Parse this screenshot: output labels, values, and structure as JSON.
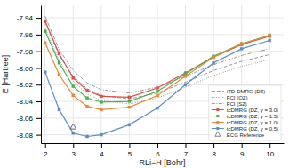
{
  "chart_data": {
    "type": "line",
    "xlabel": "RLi−H [Bohr]",
    "ylabel": "E [Hartree]",
    "x": [
      2.0,
      2.5,
      3.0,
      3.5,
      4.0,
      5.0,
      6.0,
      7.0,
      8.0,
      9.0,
      10.0
    ],
    "series": [
      {
        "name": "iTD-DMRG (DZ)",
        "color": "#999999",
        "line_style": "dashed",
        "values": [
          -7.945,
          -7.985,
          -8.01,
          -8.025,
          -8.033,
          -8.037,
          -8.03,
          -8.017,
          -8.003,
          -7.992,
          -7.984
        ]
      },
      {
        "name": "FCI (QZ)",
        "color": "#999999",
        "line_style": "dotted",
        "values": [
          -7.952,
          -7.991,
          -8.016,
          -8.031,
          -8.039,
          -8.043,
          -8.036,
          -8.023,
          -8.009,
          -7.998,
          -7.99
        ]
      },
      {
        "name": "FCI (SZ)",
        "color": "#999999",
        "line_style": "dashdot",
        "values": [
          -7.938,
          -7.978,
          -8.003,
          -8.018,
          -8.026,
          -8.03,
          -8.023,
          -8.01,
          -7.996,
          -7.985,
          -7.977
        ]
      },
      {
        "name": "tcDMRG (DZ, γ = 3.0)",
        "color": "#d94f4f",
        "line_style": "solid",
        "marker": "square",
        "values": [
          -7.944,
          -7.983,
          -8.012,
          -8.027,
          -8.034,
          -8.035,
          -8.024,
          -8.006,
          -7.987,
          -7.972,
          -7.962
        ]
      },
      {
        "name": "tcDMRG (DZ, γ = 1.5)",
        "color": "#4caf50",
        "line_style": "solid",
        "marker": "square",
        "values": [
          -7.956,
          -7.994,
          -8.022,
          -8.036,
          -8.041,
          -8.04,
          -8.028,
          -8.007,
          -7.986,
          -7.971,
          -7.961
        ]
      },
      {
        "name": "tcDMRG (DZ, γ = 1.0)",
        "color": "#e8883a",
        "line_style": "solid",
        "marker": "square",
        "values": [
          -7.97,
          -8.008,
          -8.033,
          -8.046,
          -8.05,
          -8.047,
          -8.033,
          -8.01,
          -7.987,
          -7.971,
          -7.961
        ]
      },
      {
        "name": "tcDMRG (DZ, γ = 0.5)",
        "color": "#5b8ec4",
        "line_style": "solid",
        "marker": "square",
        "values": [
          -8.005,
          -8.05,
          -8.078,
          -8.082,
          -8.08,
          -8.068,
          -8.048,
          -8.02,
          -7.994,
          -7.977,
          -7.967
        ]
      },
      {
        "name": "ECG Reference",
        "type": "scatter",
        "color": "#666666",
        "marker": "triangle",
        "x": [
          3.0
        ],
        "values": [
          -8.071
        ]
      }
    ],
    "xlim": [
      1.85,
      10.5
    ],
    "xticks": [
      2,
      3,
      4,
      5,
      6,
      7,
      8,
      9,
      10
    ],
    "ylim": [
      -8.09,
      -7.925
    ],
    "yticks": [
      -8.08,
      -8.06,
      -8.04,
      -8.02,
      {
        "value": -8.0,
        "label": "-8.00"
      },
      -7.98,
      -7.96,
      -7.94
    ],
    "grid": true,
    "legend": "lower right"
  }
}
